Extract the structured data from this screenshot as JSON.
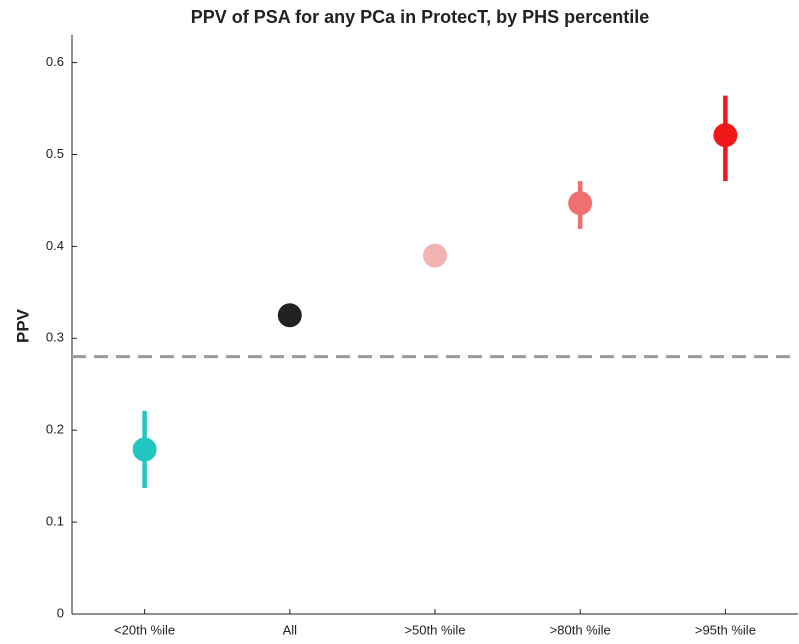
{
  "chart_data": {
    "type": "errorpoint",
    "title": "PPV of PSA for any PCa in ProtecT, by PHS percentile",
    "ylabel": "PPV",
    "categories": [
      "<20th %ile",
      "All",
      ">50th %ile",
      ">80th %ile",
      ">95th %ile"
    ],
    "values": [
      0.179,
      0.325,
      0.39,
      0.447,
      0.521
    ],
    "lower": [
      0.137,
      null,
      null,
      0.419,
      0.471
    ],
    "upper": [
      0.221,
      null,
      null,
      0.471,
      0.564
    ],
    "colors": [
      "#22c7c2",
      "#222222",
      "#f2b3b3",
      "#f07070",
      "#f01818"
    ],
    "reference_line": 0.28,
    "reference_color": "#999999",
    "ylim": [
      0,
      0.63
    ],
    "yticks": [
      0,
      0.1,
      0.2,
      0.3,
      0.4,
      0.5,
      0.6
    ]
  }
}
